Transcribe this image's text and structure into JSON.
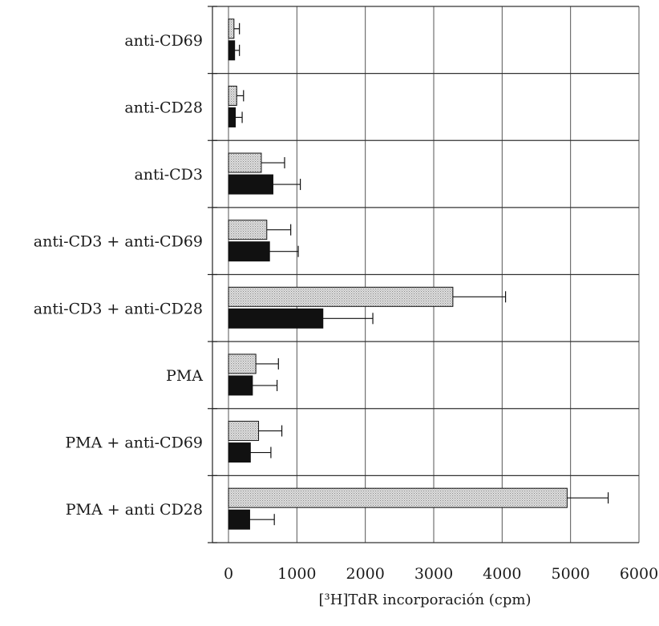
{
  "chart_data": {
    "type": "bar",
    "orientation": "horizontal",
    "categories": [
      "anti-CD69",
      "anti-CD28",
      "anti-CD3",
      "anti-CD3 + anti-CD69",
      "anti-CD3 + anti-CD28",
      "PMA",
      "PMA + anti-CD69",
      "PMA + anti CD28"
    ],
    "series": [
      {
        "fill": "dotted-gray",
        "color": "#d9d9d9",
        "values": [
          80,
          120,
          480,
          560,
          3280,
          400,
          440,
          4950
        ],
        "errors": [
          80,
          100,
          340,
          350,
          770,
          330,
          340,
          600
        ]
      },
      {
        "fill": "solid-black",
        "color": "#111111",
        "values": [
          90,
          100,
          650,
          600,
          1380,
          350,
          320,
          310
        ],
        "errors": [
          70,
          100,
          400,
          420,
          730,
          360,
          300,
          360
        ]
      }
    ],
    "xlim": [
      0,
      6000
    ],
    "xticks": [
      "0",
      "1000",
      "2000",
      "3000",
      "4000",
      "5000",
      "6000"
    ],
    "xlabel": "[³H]TdR incorporación (cpm)",
    "grid": true,
    "legend": false
  }
}
